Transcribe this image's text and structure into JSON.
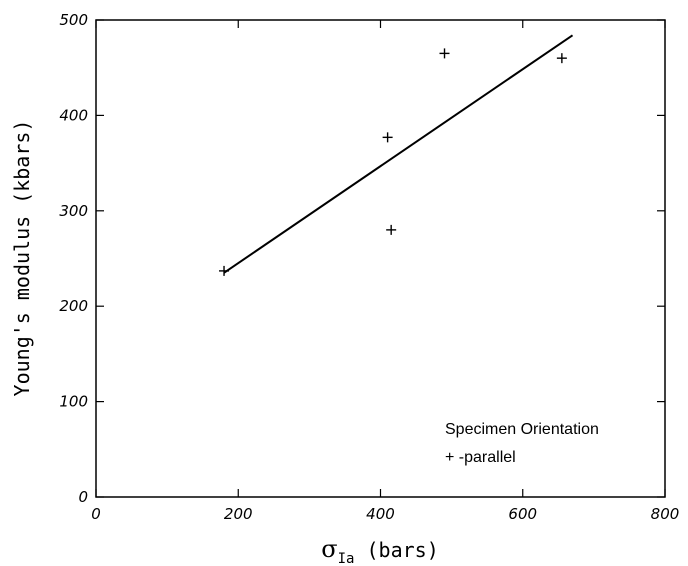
{
  "chart_data": {
    "type": "scatter",
    "xlabel_symbol": "σ",
    "xlabel_subscript": "Ia",
    "xlabel_unit": " (bars)",
    "ylabel": "Young's modulus  (kbars)",
    "xlim": [
      0,
      800
    ],
    "ylim": [
      0,
      500
    ],
    "x_ticks": [
      0,
      200,
      400,
      600,
      800
    ],
    "y_ticks": [
      0,
      100,
      200,
      300,
      400,
      500
    ],
    "x_tick_labels": [
      "0",
      "200",
      "400",
      "600",
      "800"
    ],
    "y_tick_labels": [
      "0",
      "100",
      "200",
      "300",
      "400",
      "500"
    ],
    "grid": false,
    "series": [
      {
        "name": "parallel",
        "marker": "+",
        "points": [
          {
            "x": 180,
            "y": 237
          },
          {
            "x": 410,
            "y": 377
          },
          {
            "x": 415,
            "y": 280
          },
          {
            "x": 490,
            "y": 465
          },
          {
            "x": 655,
            "y": 460
          }
        ]
      }
    ],
    "fit_line": {
      "x": [
        180,
        670
      ],
      "y": [
        235,
        484
      ]
    },
    "legend": {
      "title": "Specimen Orientation",
      "entries": [
        "+ -parallel"
      ],
      "placement": "bottom-right inside"
    }
  }
}
